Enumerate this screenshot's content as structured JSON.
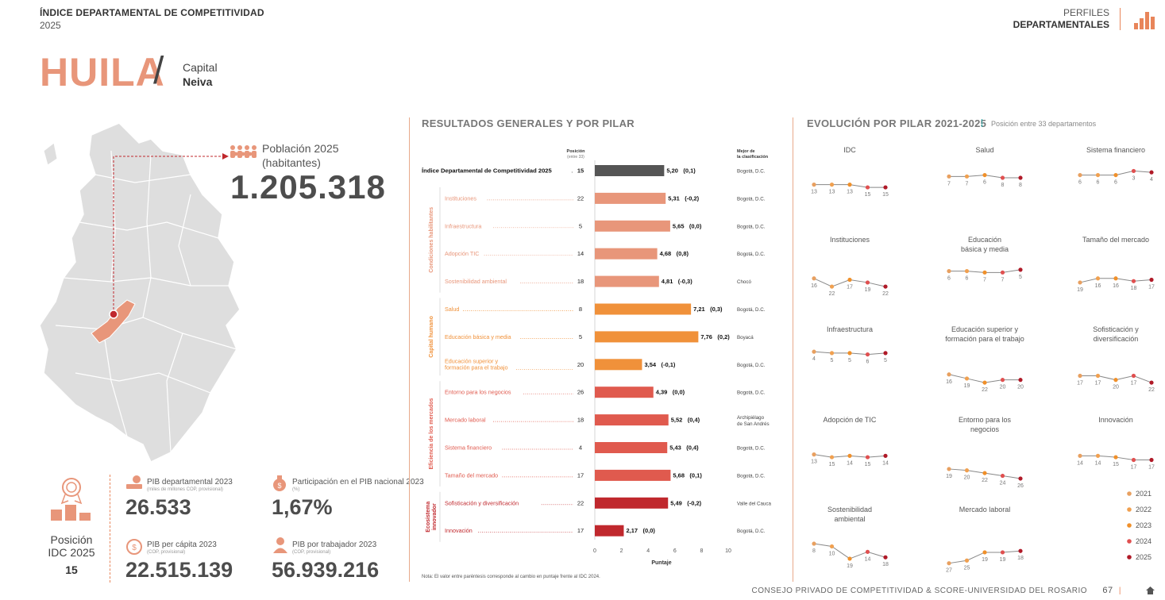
{
  "header": {
    "title": "ÍNDICE DEPARTAMENTAL DE COMPETITIVIDAD",
    "year": "2025",
    "perfiles_top": "PERFILES",
    "perfiles_bottom": "DEPARTAMENTALES"
  },
  "department": {
    "name": "HUILA",
    "slash": "/",
    "capital_label": "Capital",
    "capital": "Neiva"
  },
  "population": {
    "label_line1": "Población 2025",
    "label_line2": "(habitantes)",
    "value": "1.205.318"
  },
  "ranking": {
    "label_line1": "Posición",
    "label_line2": "IDC 2025",
    "value": "15"
  },
  "kpis": [
    {
      "label": "PIB departamental 2023",
      "sub": "(miles de millones COP, provisional)",
      "value": "26.533"
    },
    {
      "label": "Participación en el PIB nacional 2023",
      "sub": "(%)",
      "value": "1,67%"
    },
    {
      "label": "PIB per cápita 2023",
      "sub": "(COP, provisional)",
      "value": "22.515.139"
    },
    {
      "label": "PIB por trabajador 2023",
      "sub": "(COP, provisional)",
      "value": "56.939.216"
    }
  ],
  "results": {
    "title": "RESULTADOS GENERALES Y POR PILAR",
    "pos_header_line1": "Posición",
    "pos_header_line2": "(entre 33)",
    "best_header_line1": "Mejor de",
    "best_header_line2": "la clasificación",
    "xlabel": "Puntaje",
    "note": "Nota: El valor entre paréntesis corresponde al cambio en puntaje frente al IDC 2024.",
    "groups": [
      "Condiciones habilitantes",
      "Capital humano",
      "Eficiencia de los mercados",
      "Ecosistema innovador"
    ]
  },
  "evolution": {
    "title": "EVOLUCIÓN POR PILAR 2021-2025",
    "subtitle": "Posición entre 33 departamentos"
  },
  "footer": {
    "text": "CONSEJO PRIVADO DE COMPETITIVIDAD & SCORE-UNIVERSIDAD DEL ROSARIO",
    "page": "67"
  },
  "colors": {
    "accent": "#e8967a",
    "idc": "#555555",
    "condiciones": "#e8967a",
    "capital": "#f0913a",
    "eficiencia": "#e05a4e",
    "innovador": "#c0282d",
    "y2021": "#e8a060",
    "y2022": "#f0a050",
    "y2023": "#f0902a",
    "y2024": "#e05050",
    "y2025": "#b01a28"
  },
  "chart_data": [
    {
      "type": "bar",
      "orientation": "horizontal",
      "xlim": [
        0,
        10
      ],
      "xticks": [
        "0",
        "2",
        "4",
        "6",
        "8",
        "10"
      ],
      "rows": [
        {
          "label": "Índice Departamental de Competitividad 2025",
          "position": "15",
          "value": 5.2,
          "value_label": "5,20",
          "change": "(0,1)",
          "best": "Bogotá, D.C.",
          "group": "idc"
        },
        {
          "label": "Instituciones",
          "position": "22",
          "value": 5.31,
          "value_label": "5,31",
          "change": "(-0,2)",
          "best": "Bogotá, D.C.",
          "group": "condiciones"
        },
        {
          "label": "Infraestructura",
          "position": "5",
          "value": 5.65,
          "value_label": "5,65",
          "change": "(0,0)",
          "best": "Bogotá, D.C.",
          "group": "condiciones"
        },
        {
          "label": "Adopción TIC",
          "position": "14",
          "value": 4.68,
          "value_label": "4,68",
          "change": "(0,8)",
          "best": "Bogotá, D.C.",
          "group": "condiciones"
        },
        {
          "label": "Sostenibilidad ambiental",
          "position": "18",
          "value": 4.81,
          "value_label": "4,81",
          "change": "(-0,3)",
          "best": "Chocó",
          "group": "condiciones"
        },
        {
          "label": "Salud",
          "position": "8",
          "value": 7.21,
          "value_label": "7,21",
          "change": "(0,3)",
          "best": "Bogotá, D.C.",
          "group": "capital"
        },
        {
          "label": "Educación básica y media",
          "position": "5",
          "value": 7.76,
          "value_label": "7,76",
          "change": "(0,2)",
          "best": "Boyacá",
          "group": "capital"
        },
        {
          "label": "Educación superior y formación para el trabajo",
          "position": "20",
          "value": 3.54,
          "value_label": "3,54",
          "change": "(-0,1)",
          "best": "Bogotá, D.C.",
          "group": "capital"
        },
        {
          "label": "Entorno para los negocios",
          "position": "26",
          "value": 4.39,
          "value_label": "4,39",
          "change": "(0,0)",
          "best": "Bogotá, D.C.",
          "group": "eficiencia"
        },
        {
          "label": "Mercado laboral",
          "position": "18",
          "value": 5.52,
          "value_label": "5,52",
          "change": "(0,4)",
          "best": "Archipiélago de San Andrés",
          "group": "eficiencia"
        },
        {
          "label": "Sistema financiero",
          "position": "4",
          "value": 5.43,
          "value_label": "5,43",
          "change": "(0,4)",
          "best": "Bogotá, D.C.",
          "group": "eficiencia"
        },
        {
          "label": "Tamaño del mercado",
          "position": "17",
          "value": 5.68,
          "value_label": "5,68",
          "change": "(0,1)",
          "best": "Bogotá, D.C.",
          "group": "eficiencia"
        },
        {
          "label": "Sofisticación y diversificación",
          "position": "22",
          "value": 5.49,
          "value_label": "5,49",
          "change": "(-0,2)",
          "best": "Valle del Cauca",
          "group": "innovador"
        },
        {
          "label": "Innovación",
          "position": "17",
          "value": 2.17,
          "value_label": "2,17",
          "change": "(0,0)",
          "best": "Bogotá, D.C.",
          "group": "innovador"
        }
      ]
    },
    {
      "type": "line",
      "years": [
        "2021",
        "2022",
        "2023",
        "2024",
        "2025"
      ],
      "ylim_rank": [
        1,
        33
      ],
      "panels": [
        {
          "title": "IDC",
          "values": [
            13,
            13,
            13,
            15,
            15
          ]
        },
        {
          "title": "Salud",
          "values": [
            7,
            7,
            6,
            8,
            8
          ]
        },
        {
          "title": "Sistema financiero",
          "values": [
            6,
            6,
            6,
            3,
            4
          ]
        },
        {
          "title": "Instituciones",
          "values": [
            16,
            22,
            17,
            19,
            22
          ]
        },
        {
          "title": "Educación básica y media",
          "values": [
            6,
            6,
            7,
            7,
            5
          ]
        },
        {
          "title": "Tamaño del mercado",
          "values": [
            19,
            16,
            16,
            18,
            17
          ]
        },
        {
          "title": "Infraestructura",
          "values": [
            4,
            5,
            5,
            6,
            5
          ]
        },
        {
          "title": "Educación superior y formación para el trabajo",
          "values": [
            16,
            19,
            22,
            20,
            20
          ]
        },
        {
          "title": "Sofisticación y diversificación",
          "values": [
            17,
            17,
            20,
            17,
            22
          ]
        },
        {
          "title": "Adopción de TIC",
          "values": [
            13,
            15,
            14,
            15,
            14
          ]
        },
        {
          "title": "Entorno para los negocios",
          "values": [
            19,
            20,
            22,
            24,
            26
          ]
        },
        {
          "title": "Innovación",
          "values": [
            14,
            14,
            15,
            17,
            17
          ]
        },
        {
          "title": "Sostenibilidad ambiental",
          "values": [
            8,
            10,
            19,
            14,
            18
          ]
        },
        {
          "title": "Mercado laboral",
          "values": [
            27,
            25,
            19,
            19,
            18
          ]
        }
      ]
    }
  ]
}
